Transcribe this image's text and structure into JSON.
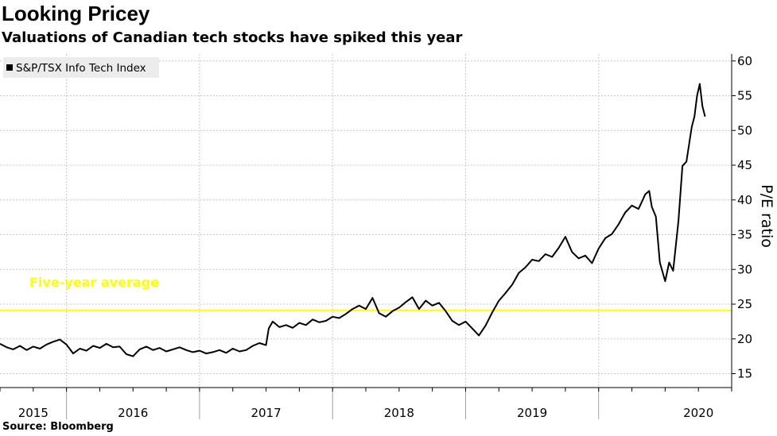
{
  "chart_data": {
    "type": "line",
    "title": "Looking Pricey",
    "subtitle": "Valuations of Canadian tech stocks have spiked this year",
    "source": "Source: Bloomberg",
    "xlabel": "",
    "ylabel": "P/E ratio",
    "ylim": [
      13,
      61
    ],
    "xlim": [
      2015.0,
      2020.5
    ],
    "yticks": [
      15,
      20,
      25,
      30,
      35,
      40,
      45,
      50,
      55,
      60
    ],
    "xtick_labels": [
      {
        "label": "2015",
        "x": 2015.25
      },
      {
        "label": "2016",
        "x": 2016.0
      },
      {
        "label": "2017",
        "x": 2017.0
      },
      {
        "label": "2018",
        "x": 2018.0
      },
      {
        "label": "2019",
        "x": 2019.0
      },
      {
        "label": "2020",
        "x": 2020.25
      }
    ],
    "year_dividers": [
      2015.5,
      2016.5,
      2017.5,
      2018.5,
      2019.5
    ],
    "grid": true,
    "legend": {
      "position": "top-left",
      "entries": [
        "S&P/TSX Info Tech Index"
      ]
    },
    "reference_line": {
      "label": "Five-year average",
      "value": 24.1,
      "color": "#ffff00"
    },
    "series": [
      {
        "name": "S&P/TSX Info Tech Index",
        "color": "#000000",
        "x": [
          2015.0,
          2015.05,
          2015.1,
          2015.15,
          2015.2,
          2015.25,
          2015.3,
          2015.35,
          2015.4,
          2015.45,
          2015.5,
          2015.55,
          2015.6,
          2015.65,
          2015.7,
          2015.75,
          2015.8,
          2015.85,
          2015.9,
          2015.95,
          2016.0,
          2016.05,
          2016.1,
          2016.15,
          2016.2,
          2016.25,
          2016.3,
          2016.35,
          2016.4,
          2016.45,
          2016.5,
          2016.55,
          2016.6,
          2016.65,
          2016.7,
          2016.75,
          2016.8,
          2016.85,
          2016.9,
          2016.95,
          2017.0,
          2017.02,
          2017.05,
          2017.1,
          2017.15,
          2017.2,
          2017.25,
          2017.3,
          2017.35,
          2017.4,
          2017.45,
          2017.5,
          2017.55,
          2017.6,
          2017.65,
          2017.7,
          2017.75,
          2017.8,
          2017.85,
          2017.9,
          2017.95,
          2018.0,
          2018.05,
          2018.1,
          2018.15,
          2018.2,
          2018.25,
          2018.3,
          2018.35,
          2018.4,
          2018.45,
          2018.5,
          2018.55,
          2018.6,
          2018.65,
          2018.7,
          2018.75,
          2018.8,
          2018.85,
          2018.9,
          2018.95,
          2019.0,
          2019.05,
          2019.1,
          2019.15,
          2019.2,
          2019.25,
          2019.3,
          2019.35,
          2019.4,
          2019.45,
          2019.5,
          2019.55,
          2019.6,
          2019.65,
          2019.7,
          2019.75,
          2019.8,
          2019.85,
          2019.88,
          2019.9,
          2019.93,
          2019.96,
          2020.0,
          2020.03,
          2020.06,
          2020.1,
          2020.13,
          2020.16,
          2020.2,
          2020.22,
          2020.24,
          2020.26,
          2020.28,
          2020.3
        ],
        "y": [
          19.3,
          18.8,
          18.5,
          19.0,
          18.4,
          18.9,
          18.6,
          19.2,
          19.6,
          19.9,
          19.2,
          17.9,
          18.6,
          18.3,
          19.0,
          18.7,
          19.3,
          18.8,
          18.9,
          17.8,
          17.5,
          18.5,
          18.9,
          18.4,
          18.7,
          18.2,
          18.5,
          18.8,
          18.4,
          18.1,
          18.3,
          17.9,
          18.1,
          18.4,
          18.0,
          18.6,
          18.2,
          18.4,
          19.0,
          19.4,
          19.1,
          21.5,
          22.5,
          21.7,
          22.0,
          21.6,
          22.3,
          22.0,
          22.8,
          22.4,
          22.6,
          23.2,
          23.0,
          23.6,
          24.3,
          24.8,
          24.3,
          25.9,
          23.7,
          23.2,
          24.0,
          24.5,
          25.3,
          26.0,
          24.3,
          25.5,
          24.8,
          25.2,
          24.0,
          22.6,
          22.0,
          22.5,
          21.5,
          20.5,
          21.9,
          23.8,
          25.5,
          26.6,
          27.8,
          29.5,
          30.3,
          31.4,
          31.2,
          32.2,
          31.8,
          33.1,
          34.7,
          32.5,
          31.6,
          32.0,
          30.9,
          33.0,
          34.5,
          35.1,
          36.5,
          38.2,
          39.2,
          38.7,
          40.8,
          41.3,
          39.0,
          37.6,
          31.0,
          28.3,
          31.0,
          29.8,
          37.0,
          44.9,
          45.5,
          50.5,
          52.0,
          55.0,
          56.7,
          53.5,
          52.0
        ]
      }
    ]
  }
}
